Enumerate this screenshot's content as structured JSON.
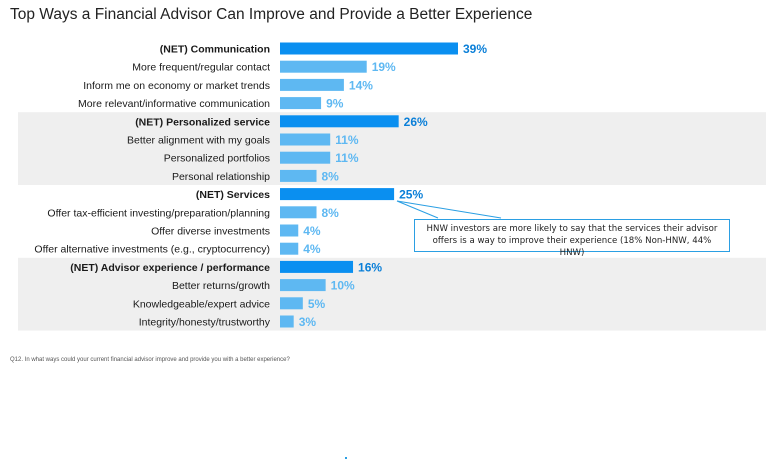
{
  "title": "Top Ways a Financial Advisor Can Improve and Provide a Better Experience",
  "footnote": "Q12. In what ways could your current financial advisor improve and provide you with a better experience?",
  "callout": "HNW investors are more likely to say that the services their advisor offers is a way to improve their experience (18% Non-HNW, 44% HNW)",
  "colors": {
    "net_bar": "#0a8ff0",
    "sub_bar": "#5eb8f2",
    "net_label": "#0a7fd8",
    "sub_label": "#5eb8f2",
    "band": "#efefef",
    "callout_border": "#2b9fe3"
  },
  "chart_data": {
    "type": "bar",
    "orientation": "horizontal",
    "unit": "%",
    "xlim": [
      0,
      40
    ],
    "groups": [
      {
        "net": {
          "label": "(NET) Communication",
          "value": 39
        },
        "items": [
          {
            "label": "More frequent/regular contact",
            "value": 19
          },
          {
            "label": "Inform me on economy or market trends",
            "value": 14
          },
          {
            "label": "More relevant/informative communication",
            "value": 9
          }
        ]
      },
      {
        "net": {
          "label": "(NET) Personalized service",
          "value": 26
        },
        "items": [
          {
            "label": "Better alignment with my goals",
            "value": 11
          },
          {
            "label": "Personalized portfolios",
            "value": 11
          },
          {
            "label": "Personal relationship",
            "value": 8
          }
        ]
      },
      {
        "net": {
          "label": "(NET) Services",
          "value": 25
        },
        "items": [
          {
            "label": "Offer tax-efficient investing/preparation/planning",
            "value": 8
          },
          {
            "label": "Offer diverse investments",
            "value": 4
          },
          {
            "label": "Offer alternative investments (e.g., cryptocurrency)",
            "value": 4
          }
        ]
      },
      {
        "net": {
          "label": "(NET) Advisor experience / performance",
          "value": 16
        },
        "items": [
          {
            "label": "Better returns/growth",
            "value": 10
          },
          {
            "label": "Knowledgeable/expert advice",
            "value": 5
          },
          {
            "label": "Integrity/honesty/trustworthy",
            "value": 3
          }
        ]
      }
    ]
  }
}
